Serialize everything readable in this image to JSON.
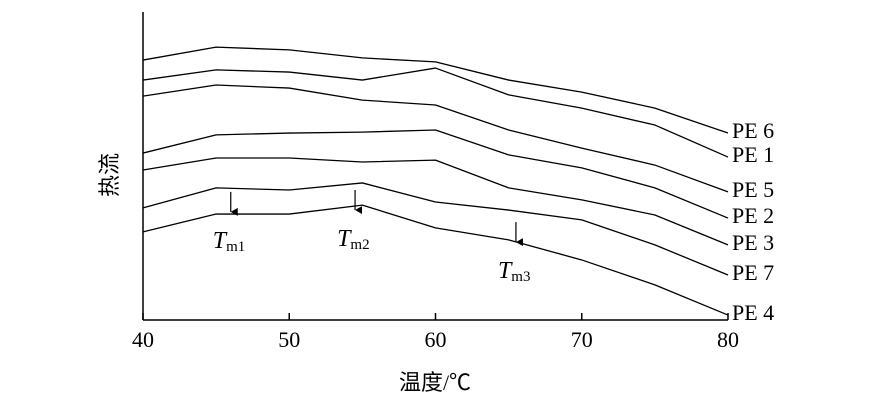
{
  "chart_data": {
    "type": "line",
    "x_label": "温度/℃",
    "y_label": "热流",
    "x": [
      40,
      45,
      50,
      55,
      60,
      65,
      70,
      75,
      80
    ],
    "xlim": [
      40,
      80
    ],
    "xticks": [
      40,
      50,
      60,
      70,
      80
    ],
    "ylim": [
      0,
      100
    ],
    "series": [
      {
        "name": "PE 6",
        "color": "#000000",
        "values": [
          84.4,
          88.6,
          87.7,
          85.1,
          83.8,
          77.9,
          74.0,
          68.8,
          60.7
        ]
      },
      {
        "name": "PE 1",
        "color": "#000000",
        "values": [
          77.9,
          81.2,
          80.5,
          77.9,
          81.8,
          73.1,
          68.8,
          63.3,
          52.9
        ]
      },
      {
        "name": "PE 5",
        "color": "#000000",
        "values": [
          72.7,
          76.3,
          75.3,
          71.4,
          69.8,
          61.7,
          55.8,
          50.3,
          41.6
        ]
      },
      {
        "name": "PE 2",
        "color": "#000000",
        "values": [
          54.2,
          60.1,
          60.7,
          61.0,
          61.7,
          53.6,
          49.4,
          42.9,
          33.1
        ]
      },
      {
        "name": "PE 3",
        "color": "#000000",
        "values": [
          48.7,
          52.6,
          52.6,
          51.3,
          51.9,
          42.9,
          39.0,
          34.1,
          24.4
        ]
      },
      {
        "name": "PE 7",
        "color": "#000000",
        "values": [
          36.4,
          42.9,
          42.2,
          44.5,
          38.3,
          35.7,
          32.5,
          24.4,
          14.6
        ]
      },
      {
        "name": "PE 4",
        "color": "#000000",
        "values": [
          28.6,
          34.4,
          34.4,
          37.3,
          29.9,
          26.0,
          19.5,
          11.4,
          1.6
        ]
      }
    ],
    "annotations": [
      {
        "label": "T",
        "subscript": "m1",
        "x": 46,
        "y": 35.1
      },
      {
        "label": "T",
        "subscript": "m2",
        "x": 54.5,
        "y": 35.7
      },
      {
        "label": "T",
        "subscript": "m3",
        "x": 65.5,
        "y": 25.3
      }
    ]
  }
}
